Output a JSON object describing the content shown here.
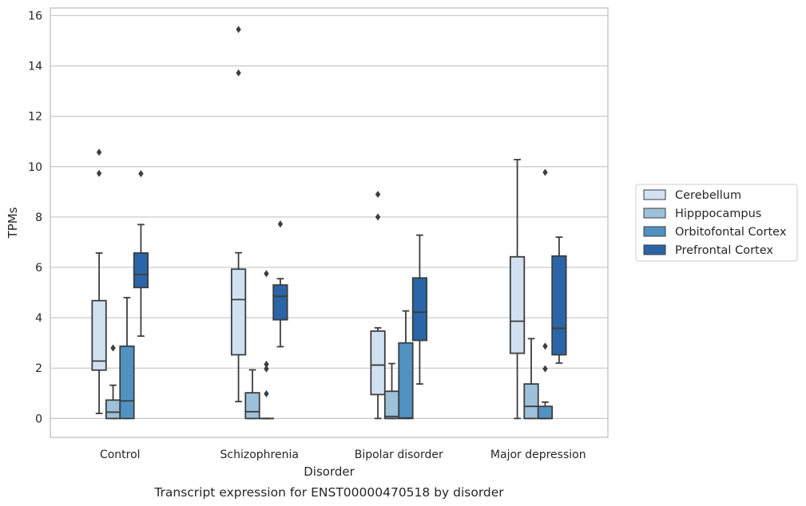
{
  "chart_data": {
    "type": "box",
    "xlabel": "Disorder",
    "ylabel": "TPMs",
    "caption": "Transcript expression for ENST00000470518 by disorder",
    "ylim": [
      -0.75,
      16.3
    ],
    "yticks": [
      0,
      2,
      4,
      6,
      8,
      10,
      12,
      14,
      16
    ],
    "grid": true,
    "legend_position": "right",
    "categories": [
      "Control",
      "Schizophrenia",
      "Bipolar disorder",
      "Major depression"
    ],
    "series": [
      {
        "name": "Cerebellum",
        "color": "#d2e1f1",
        "boxes": [
          {
            "q1": 1.92,
            "median": 2.28,
            "q3": 4.68,
            "whislo": 0.2,
            "whishi": 6.57,
            "fliers": [
              9.73,
              10.57
            ]
          },
          {
            "q1": 2.53,
            "median": 4.72,
            "q3": 5.93,
            "whislo": 0.67,
            "whishi": 6.58,
            "fliers": [
              13.72,
              15.45
            ]
          },
          {
            "q1": 0.95,
            "median": 2.12,
            "q3": 3.47,
            "whislo": 0.0,
            "whishi": 3.6,
            "fliers": [
              8.0,
              8.9
            ]
          },
          {
            "q1": 2.59,
            "median": 3.86,
            "q3": 6.42,
            "whislo": 0.0,
            "whishi": 10.28,
            "fliers": []
          }
        ]
      },
      {
        "name": "Hipppocampus",
        "color": "#9dc1da",
        "boxes": [
          {
            "q1": 0.0,
            "median": 0.25,
            "q3": 0.73,
            "whislo": 0.0,
            "whishi": 1.32,
            "fliers": [
              2.8
            ]
          },
          {
            "q1": 0.0,
            "median": 0.27,
            "q3": 1.02,
            "whislo": 0.0,
            "whishi": 1.93,
            "fliers": []
          },
          {
            "q1": 0.0,
            "median": 0.08,
            "q3": 1.08,
            "whislo": 0.0,
            "whishi": 2.18,
            "fliers": []
          },
          {
            "q1": 0.0,
            "median": 0.48,
            "q3": 1.37,
            "whislo": 0.0,
            "whishi": 3.17,
            "fliers": []
          }
        ]
      },
      {
        "name": "Orbitofontal Cortex",
        "color": "#5292c2",
        "boxes": [
          {
            "q1": 0.0,
            "median": 0.7,
            "q3": 2.87,
            "whislo": 0.0,
            "whishi": 4.8,
            "fliers": []
          },
          {
            "q1": 0.0,
            "median": 0.0,
            "q3": 0.0,
            "whislo": 0.0,
            "whishi": 0.0,
            "fliers": [
              0.98,
              1.97,
              2.15,
              5.75
            ]
          },
          {
            "q1": 0.0,
            "median": 0.02,
            "q3": 3.0,
            "whislo": 0.0,
            "whishi": 4.27,
            "fliers": []
          },
          {
            "q1": 0.0,
            "median": 0.0,
            "q3": 0.48,
            "whislo": 0.0,
            "whishi": 0.65,
            "fliers": [
              1.97,
              2.87,
              9.77
            ]
          }
        ]
      },
      {
        "name": "Prefrontal Cortex",
        "color": "#2a66a7",
        "boxes": [
          {
            "q1": 5.2,
            "median": 5.72,
            "q3": 6.57,
            "whislo": 3.27,
            "whishi": 7.7,
            "fliers": [
              9.72
            ]
          },
          {
            "q1": 3.92,
            "median": 4.85,
            "q3": 5.3,
            "whislo": 2.85,
            "whishi": 5.55,
            "fliers": [
              7.72
            ]
          },
          {
            "q1": 3.1,
            "median": 4.22,
            "q3": 5.58,
            "whislo": 1.37,
            "whishi": 7.28,
            "fliers": []
          },
          {
            "q1": 2.53,
            "median": 3.58,
            "q3": 6.45,
            "whislo": 2.2,
            "whishi": 7.2,
            "fliers": []
          }
        ]
      }
    ]
  }
}
